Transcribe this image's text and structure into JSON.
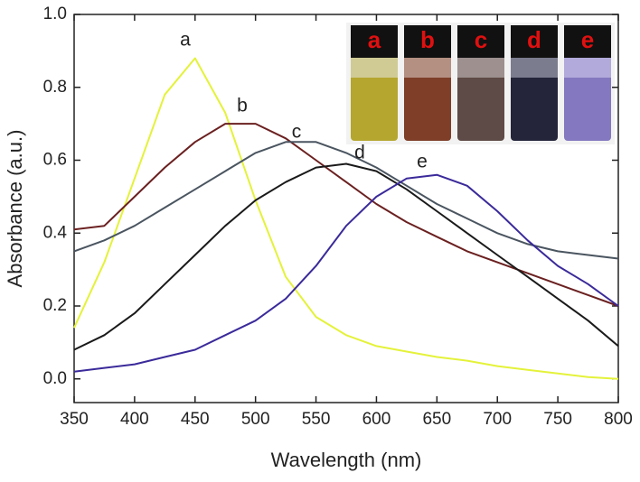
{
  "chart_data": {
    "type": "line",
    "x_label": "Wavelength (nm)",
    "y_label": "Absorbance (a.u.)",
    "x": [
      350,
      375,
      400,
      425,
      450,
      475,
      500,
      525,
      550,
      575,
      600,
      625,
      650,
      675,
      700,
      725,
      750,
      775,
      800
    ],
    "series": [
      {
        "name": "a",
        "color": "#e4f23a",
        "values": [
          0.14,
          0.32,
          0.55,
          0.78,
          0.88,
          0.73,
          0.49,
          0.28,
          0.17,
          0.12,
          0.09,
          0.075,
          0.06,
          0.05,
          0.035,
          0.025,
          0.015,
          0.005,
          0.0
        ]
      },
      {
        "name": "b",
        "color": "#6b2020",
        "values": [
          0.41,
          0.42,
          0.5,
          0.58,
          0.65,
          0.7,
          0.7,
          0.66,
          0.6,
          0.54,
          0.48,
          0.43,
          0.39,
          0.35,
          0.32,
          0.29,
          0.26,
          0.23,
          0.2
        ]
      },
      {
        "name": "c",
        "color": "#4a5560",
        "values": [
          0.35,
          0.38,
          0.42,
          0.47,
          0.52,
          0.57,
          0.62,
          0.65,
          0.65,
          0.62,
          0.58,
          0.53,
          0.48,
          0.44,
          0.4,
          0.37,
          0.35,
          0.34,
          0.33
        ]
      },
      {
        "name": "d",
        "color": "#1a1a1a",
        "values": [
          0.08,
          0.12,
          0.18,
          0.26,
          0.34,
          0.42,
          0.49,
          0.54,
          0.58,
          0.59,
          0.57,
          0.52,
          0.46,
          0.4,
          0.34,
          0.28,
          0.22,
          0.16,
          0.09
        ]
      },
      {
        "name": "e",
        "color": "#3a2a9a",
        "values": [
          0.02,
          0.03,
          0.04,
          0.06,
          0.08,
          0.12,
          0.16,
          0.22,
          0.31,
          0.42,
          0.5,
          0.55,
          0.56,
          0.53,
          0.46,
          0.38,
          0.31,
          0.26,
          0.2
        ]
      }
    ],
    "xlim": [
      350,
      800
    ],
    "ylim": [
      -0.065,
      1.0
    ],
    "xticks": [
      350,
      400,
      450,
      500,
      550,
      600,
      650,
      700,
      750,
      800
    ],
    "yticks": [
      {
        "value": 0,
        "label": "0.0"
      },
      0.2,
      0.4,
      0.6,
      0.8,
      {
        "value": 1,
        "label": "1.0"
      }
    ]
  }
}
